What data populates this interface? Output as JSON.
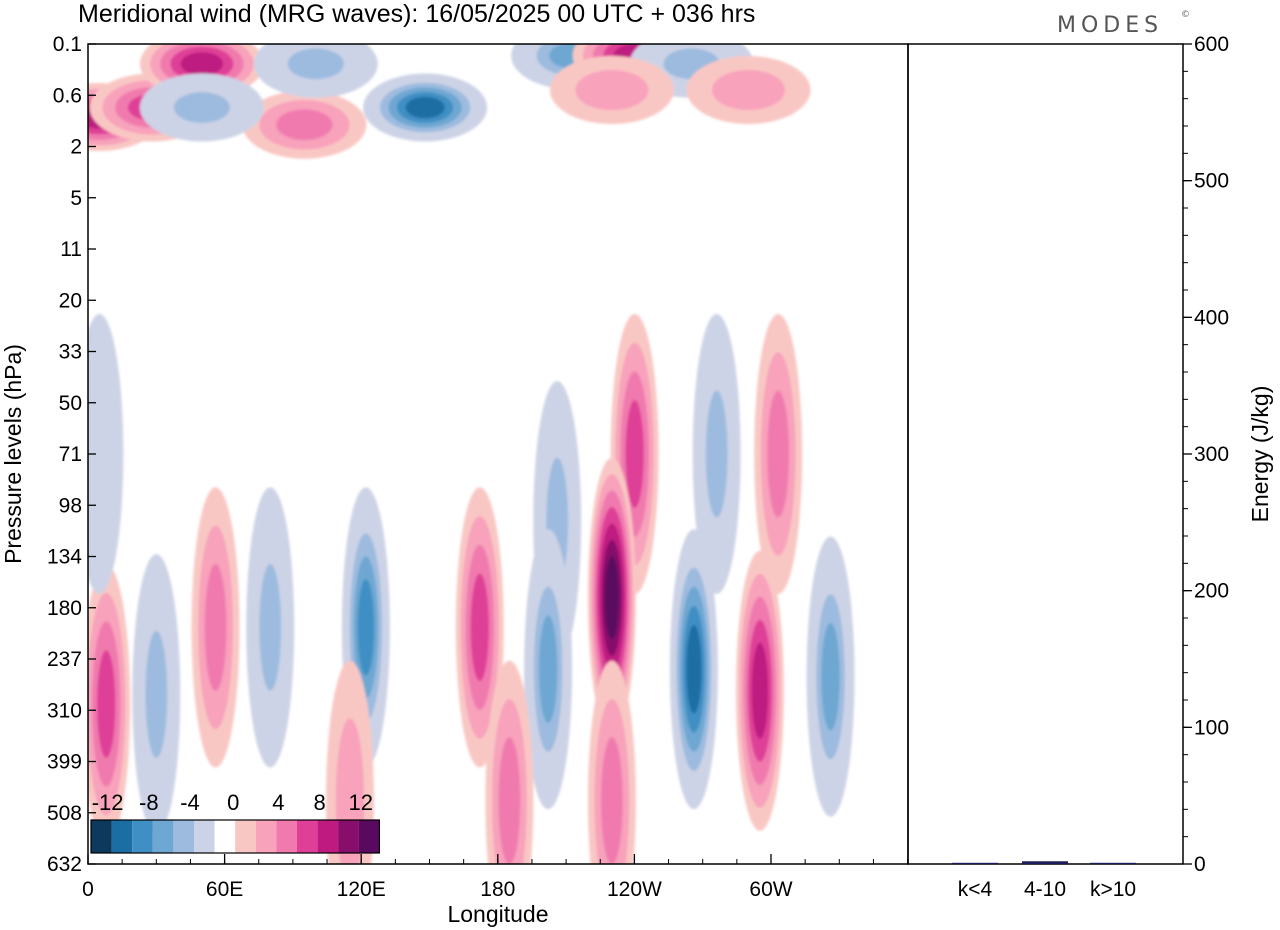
{
  "header": {
    "title": "Meridional wind (MRG waves):  16/05/2025  00 UTC  + 036 hrs",
    "brand": "MODES",
    "brand_mark": "©"
  },
  "chart_data": [
    {
      "type": "heatmap",
      "title": "Meridional wind (MRG waves):  16/05/2025  00 UTC  + 036 hrs",
      "xlabel": "Longitude",
      "ylabel": "Pressure levels (hPa)",
      "x_ticks": [
        "0",
        "60E",
        "120E",
        "180",
        "120W",
        "60W"
      ],
      "x_range_deg_east": [
        0,
        360
      ],
      "y_ticks": [
        "0.1",
        "0.6",
        "2",
        "5",
        "11",
        "20",
        "33",
        "50",
        "71",
        "98",
        "134",
        "180",
        "237",
        "310",
        "399",
        "508",
        "632"
      ],
      "colorbar": {
        "labels": [
          "-12",
          "-8",
          "-4",
          "0",
          "4",
          "8",
          "12"
        ],
        "levels": [
          -14,
          -12,
          -10,
          -8,
          -6,
          -4,
          -2,
          2,
          4,
          6,
          8,
          10,
          12,
          14
        ],
        "colors": [
          "#0d3a5c",
          "#1a6ea3",
          "#3f8fc4",
          "#6ea7d2",
          "#9dbbdf",
          "#cdd3e6",
          "#ffffff",
          "#f9c7c3",
          "#f8a2bb",
          "#f07aae",
          "#df3f97",
          "#be1a80",
          "#870e6a",
          "#5a0a5e"
        ]
      },
      "features": [
        {
          "lon": 5,
          "level": 1.0,
          "v": 10
        },
        {
          "lon": 28,
          "level": 0.8,
          "v": 9
        },
        {
          "lon": 50,
          "level": 0.2,
          "v": 10
        },
        {
          "lon": 95,
          "level": 1.2,
          "v": 6
        },
        {
          "lon": 50,
          "level": 0.8,
          "v": -6
        },
        {
          "lon": 100,
          "level": 0.2,
          "v": -6
        },
        {
          "lon": 148,
          "level": 0.8,
          "v": -12
        },
        {
          "lon": 213,
          "level": 0.15,
          "v": -8
        },
        {
          "lon": 240,
          "level": 0.15,
          "v": 10
        },
        {
          "lon": 265,
          "level": 0.2,
          "v": -6
        },
        {
          "lon": 230,
          "level": 0.5,
          "v": 4
        },
        {
          "lon": 290,
          "level": 0.5,
          "v": 4
        },
        {
          "lon": 240,
          "level": 71,
          "v": 8
        },
        {
          "lon": 303,
          "level": 71,
          "v": 6
        },
        {
          "lon": 206,
          "level": 108,
          "v": -6
        },
        {
          "lon": 276,
          "level": 71,
          "v": -6
        },
        {
          "lon": 8,
          "level": 300,
          "v": 9
        },
        {
          "lon": 30,
          "level": 285,
          "v": -6
        },
        {
          "lon": 56,
          "level": 200,
          "v": 7
        },
        {
          "lon": 80,
          "level": 200,
          "v": -6
        },
        {
          "lon": 122,
          "level": 200,
          "v": -10
        },
        {
          "lon": 172,
          "level": 200,
          "v": 8
        },
        {
          "lon": 202,
          "level": 250,
          "v": -8
        },
        {
          "lon": 230,
          "level": 170,
          "v": 14
        },
        {
          "lon": 266,
          "level": 250,
          "v": -12
        },
        {
          "lon": 295,
          "level": 280,
          "v": 10
        },
        {
          "lon": 326,
          "level": 260,
          "v": -8
        },
        {
          "lon": 185,
          "level": 480,
          "v": 6
        },
        {
          "lon": 230,
          "level": 480,
          "v": 6
        },
        {
          "lon": 115,
          "level": 480,
          "v": 4
        },
        {
          "lon": 5,
          "level": 71,
          "v": -4
        }
      ]
    },
    {
      "type": "bar",
      "categories": [
        "k<4",
        "4-10",
        "k>10"
      ],
      "values": [
        0,
        2,
        0
      ],
      "ylabel": "Energy (J/kg)",
      "ylim": [
        0,
        600
      ],
      "y_ticks": [
        "0",
        "100",
        "200",
        "300",
        "400",
        "500",
        "600"
      ],
      "bar_color": "#1c1c5a"
    }
  ]
}
